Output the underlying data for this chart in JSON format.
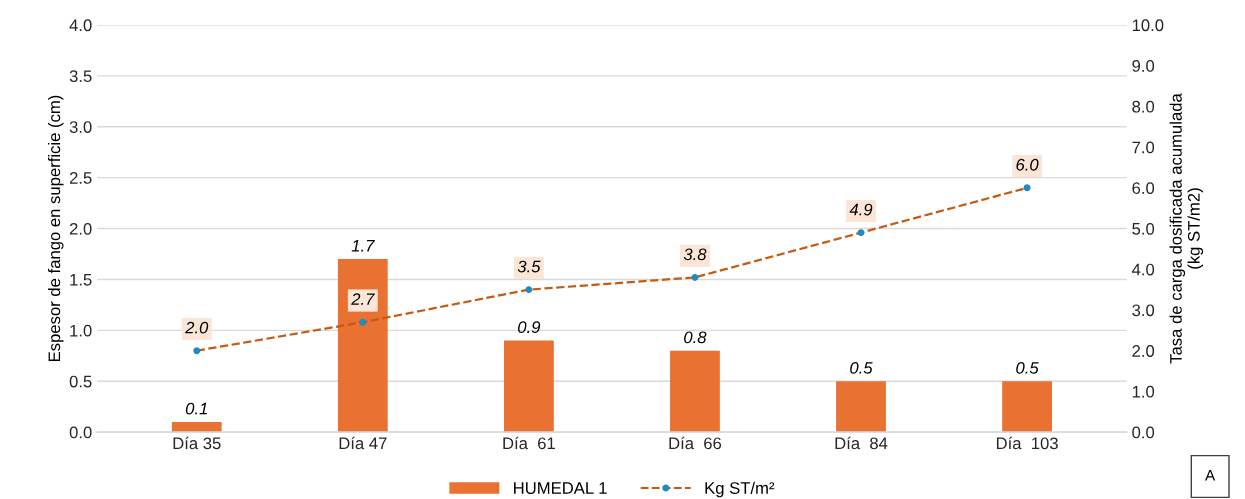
{
  "chart_data": {
    "type": "bar",
    "categories": [
      "Día 35",
      "Día 47",
      "Día  61",
      "Día  66",
      "Día  84",
      "Día  103"
    ],
    "series": [
      {
        "name": "HUMEDAL 1",
        "color": "#e97132",
        "values": [
          0.1,
          1.7,
          0.9,
          0.8,
          0.5,
          0.5
        ],
        "value_labels": [
          "0.1",
          "1.7",
          "0.9",
          "0.8",
          "0.5",
          "0.5"
        ]
      },
      {
        "name": "Kg ST/m²",
        "type": "line",
        "axis": "y2",
        "color": "#c55a11",
        "values": [
          2.0,
          2.7,
          3.5,
          3.8,
          4.9,
          6.0
        ],
        "value_labels": [
          "2.0",
          "2.7",
          "3.5",
          "3.8",
          "4.9",
          "6.0"
        ]
      }
    ],
    "ylabel": "Espesor de fango en superficie (cm)",
    "y2label": "Tasa de carga dosificada acumulada\n(kg ST/m2)",
    "ylim": [
      0,
      4
    ],
    "yticks": [
      {
        "value": 0,
        "label": "0.0"
      },
      {
        "value": 0.5,
        "label": "0.5"
      },
      {
        "value": 1,
        "label": "1.0"
      },
      {
        "value": 1.5,
        "label": "1.5"
      },
      {
        "value": 2,
        "label": "2.0"
      },
      {
        "value": 2.5,
        "label": "2.5"
      },
      {
        "value": 3,
        "label": "3.0"
      },
      {
        "value": 3.5,
        "label": "3.5"
      },
      {
        "value": 4,
        "label": "4.0"
      }
    ],
    "y2lim": [
      0,
      10
    ],
    "y2ticks": [
      {
        "value": 0,
        "label": "0.0"
      },
      {
        "value": 1,
        "label": "1.0"
      },
      {
        "value": 2,
        "label": "2.0"
      },
      {
        "value": 3,
        "label": "3.0"
      },
      {
        "value": 4,
        "label": "4.0"
      },
      {
        "value": 5,
        "label": "5.0"
      },
      {
        "value": 6,
        "label": "6.0"
      },
      {
        "value": 7,
        "label": "7.0"
      },
      {
        "value": 8,
        "label": "8.0"
      },
      {
        "value": 9,
        "label": "9.0"
      },
      {
        "value": 10,
        "label": "10.0"
      }
    ],
    "grid": "y",
    "legend": "bottom",
    "data_labels": true,
    "marker": "circle",
    "line_style": "dashed",
    "annotations": [
      "A"
    ]
  }
}
